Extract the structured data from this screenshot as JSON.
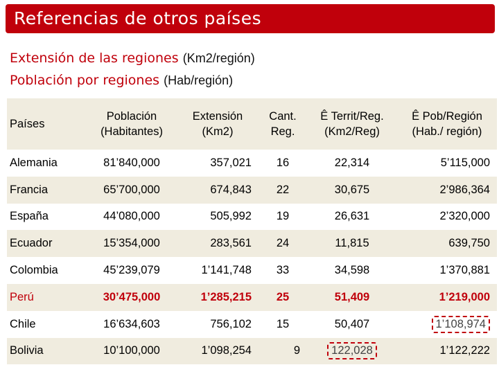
{
  "header": {
    "title": "Referencias de otros países",
    "subtitle1_main": "Extensión de las regiones",
    "subtitle1_unit": "(Km2/región)",
    "subtitle2_main": "Población por regiones",
    "subtitle2_unit": "(Hab/región)"
  },
  "table": {
    "columns": [
      {
        "line1": "Países",
        "line2": ""
      },
      {
        "line1": "Población",
        "line2": "(Habitantes)"
      },
      {
        "line1": "Extensión",
        "line2": "(Km2)"
      },
      {
        "line1": "Cant.",
        "line2": "Reg."
      },
      {
        "line1": "Ê Territ/Reg.",
        "line2": "(Km2/Reg)"
      },
      {
        "line1": "Ê Pob/Región",
        "line2": "(Hab./ región)"
      }
    ],
    "rows": [
      {
        "country": "Alemania",
        "poblacion": "81’840,000",
        "extension": "357,021",
        "cant": "16",
        "territ": "22,314",
        "pob": "5’115,000"
      },
      {
        "country": "Francia",
        "poblacion": "65’700,000",
        "extension": "674,843",
        "cant": "22",
        "territ": "30,675",
        "pob": "2’986,364"
      },
      {
        "country": "España",
        "poblacion": "44’080,000",
        "extension": "505,992",
        "cant": "19",
        "territ": "26,631",
        "pob": "2’320,000"
      },
      {
        "country": "Ecuador",
        "poblacion": "15’354,000",
        "extension": "283,561",
        "cant": "24",
        "territ": "11,815",
        "pob": "639,750"
      },
      {
        "country": "Colombia",
        "poblacion": "45’239,079",
        "extension": "1’141,748",
        "cant": "33",
        "territ": "34,598",
        "pob": "1’370,881"
      },
      {
        "country": "Perú",
        "poblacion": "30’475,000",
        "extension": "1’285,215",
        "cant": "25",
        "territ": "51,409",
        "pob": "1’219,000"
      },
      {
        "country": "Chile",
        "poblacion": "16’634,603",
        "extension": "756,102",
        "cant": "15",
        "territ": "50,407",
        "pob": "1’108,974"
      },
      {
        "country": "Bolivia",
        "poblacion": "10’100,000",
        "extension": "1’098,254",
        "cant": "9",
        "territ": "122,028",
        "pob": "1’122,222"
      }
    ]
  },
  "colors": {
    "accent": "#c0000b",
    "header_bg": "#f0ecdf",
    "stripe_bg": "#f0ecdf"
  }
}
